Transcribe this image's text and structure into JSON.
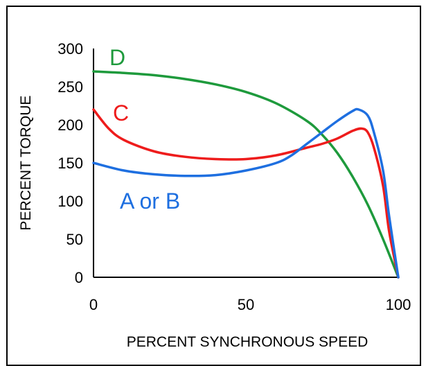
{
  "chart_data": {
    "type": "line",
    "title": "",
    "xlabel": "PERCENT SYNCHRONOUS SPEED",
    "ylabel": "PERCENT TORQUE",
    "xlim": [
      0,
      100
    ],
    "ylim": [
      0,
      300
    ],
    "x_ticks": [
      "0",
      "50",
      "100"
    ],
    "y_ticks": [
      "0",
      "50",
      "100",
      "150",
      "200",
      "250",
      "300"
    ],
    "grid": false,
    "legend": "none",
    "series": [
      {
        "name": "D",
        "color": "#1e9a3c",
        "x": [
          0,
          10,
          20,
          30,
          40,
          50,
          60,
          70,
          75,
          80,
          85,
          90,
          95,
          100
        ],
        "y": [
          270,
          268,
          265,
          260,
          253,
          243,
          228,
          205,
          187,
          163,
          132,
          95,
          50,
          0
        ]
      },
      {
        "name": "C",
        "color": "#ee1c1c",
        "x": [
          0,
          5,
          10,
          20,
          30,
          40,
          50,
          60,
          70,
          75,
          80,
          85,
          88,
          90,
          92,
          95,
          97,
          100
        ],
        "y": [
          220,
          195,
          180,
          165,
          158,
          155,
          155,
          160,
          170,
          175,
          182,
          192,
          195,
          190,
          170,
          120,
          60,
          0
        ]
      },
      {
        "name": "A or B",
        "color": "#1e6fe0",
        "x": [
          0,
          10,
          20,
          30,
          40,
          50,
          60,
          65,
          70,
          75,
          80,
          85,
          87,
          90,
          92,
          95,
          97,
          100
        ],
        "y": [
          150,
          140,
          135,
          133,
          134,
          140,
          150,
          160,
          175,
          190,
          205,
          218,
          220,
          212,
          190,
          140,
          80,
          0
        ]
      }
    ]
  }
}
